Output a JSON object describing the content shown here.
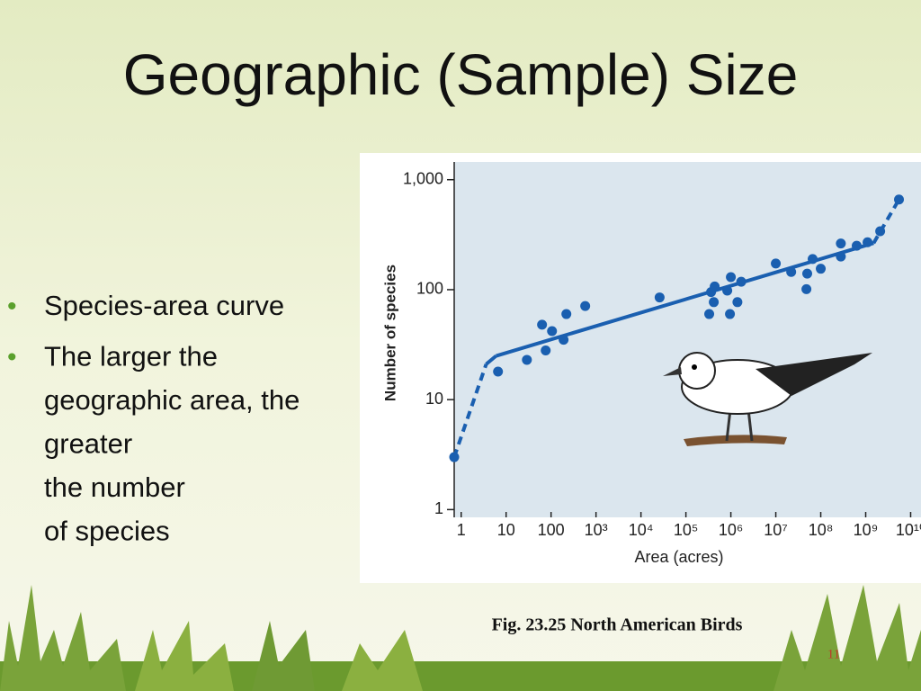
{
  "title": "Geographic (Sample) Size",
  "bullets": [
    [
      "Species-area curve"
    ],
    [
      "The larger the",
      "geographic area, the",
      "greater",
      "the number",
      "of species"
    ]
  ],
  "caption": "Fig. 23.25  North American Birds",
  "page_number": "11",
  "chart_data": {
    "type": "scatter",
    "x_label": "Area (acres)",
    "y_label": "Number of species",
    "x": [
      0.7,
      6.6,
      29,
      63,
      76,
      105,
      190,
      219,
      575,
      26000,
      330000,
      363000,
      437000,
      417000,
      832000,
      1000000,
      955000,
      1400000,
      1700000,
      10000000,
      22000000,
      48000000,
      50000000,
      66000000,
      100000000,
      280000000,
      280000000,
      630000000,
      1100000000,
      2100000000,
      5500000000
    ],
    "values": [
      3,
      18,
      23,
      48,
      28,
      42,
      35,
      60,
      71,
      85,
      60,
      95,
      107,
      77,
      98,
      130,
      60,
      77,
      118,
      173,
      145,
      101,
      140,
      190,
      155,
      200,
      263,
      251,
      270,
      340,
      660
    ],
    "color": "#1a5fb0",
    "curve": {
      "x": [
        0.7,
        3.6,
        6,
        1500000000,
        5500000000
      ],
      "y": [
        3,
        21,
        25,
        265,
        660
      ],
      "dashed": [
        true,
        false,
        false,
        true
      ]
    },
    "xscale": "log",
    "yscale": "log",
    "xlim": [
      0.7,
      17000000000
    ],
    "ylim": [
      0.85,
      1450
    ],
    "xticks": [
      1,
      10,
      100,
      {
        "value": 1000,
        "label": "10³"
      },
      {
        "value": 10000,
        "label": "10⁴"
      },
      {
        "value": 100000,
        "label": "10⁵"
      },
      {
        "value": 1000000,
        "label": "10⁶"
      },
      {
        "value": 10000000,
        "label": "10⁷"
      },
      {
        "value": 100000000,
        "label": "10⁸"
      },
      {
        "value": 1000000000,
        "label": "10⁹"
      },
      {
        "value": 10000000000,
        "label": "10¹⁰"
      }
    ],
    "yticks": [
      1,
      10,
      100,
      {
        "value": 1000,
        "label": "1,000"
      }
    ]
  }
}
